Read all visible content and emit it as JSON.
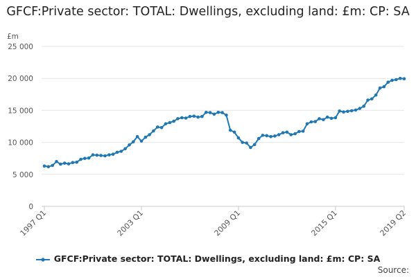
{
  "chart_data": {
    "type": "line",
    "title": "GFCF:Private sector: TOTAL: Dwellings, excluding land: £m: CP: SA",
    "ylabel": "£m",
    "ylim": [
      0,
      25000
    ],
    "yticks": [
      0,
      5000,
      10000,
      15000,
      20000,
      25000
    ],
    "ytick_labels": [
      "0",
      "5 000",
      "10 000",
      "15 000",
      "20 000",
      "25 000"
    ],
    "xtick_labels": [
      "1997 Q1",
      "2003 Q1",
      "2009 Q1",
      "2015 Q1",
      "2019 Q2"
    ],
    "xtick_index": [
      0,
      24,
      48,
      72,
      89
    ],
    "grid": true,
    "legend_position": "bottom",
    "series": [
      {
        "name": "GFCF:Private sector: TOTAL: Dwellings, excluding land: £m: CP: SA",
        "color": "#1f77b4",
        "values": [
          6300,
          6200,
          6400,
          7000,
          6600,
          6750,
          6650,
          6850,
          6900,
          7350,
          7500,
          7550,
          8050,
          8000,
          7950,
          7900,
          8050,
          8150,
          8450,
          8600,
          9000,
          9600,
          10100,
          10900,
          10200,
          10800,
          11200,
          11800,
          12400,
          12300,
          12900,
          13100,
          13300,
          13700,
          13850,
          13800,
          14050,
          14100,
          13950,
          14050,
          14700,
          14650,
          14400,
          14700,
          14650,
          14250,
          11900,
          11600,
          10700,
          10000,
          9900,
          9200,
          9650,
          10600,
          11100,
          11050,
          10900,
          11000,
          11200,
          11500,
          11600,
          11200,
          11350,
          11700,
          11750,
          12900,
          13200,
          13250,
          13700,
          13550,
          13950,
          13750,
          13850,
          14900,
          14750,
          14850,
          14950,
          15050,
          15300,
          15650,
          16600,
          16800,
          17400,
          18500,
          18700,
          19400,
          19700,
          19800,
          20000,
          19950
        ]
      }
    ]
  },
  "footer": {
    "source_label": "Source:"
  }
}
